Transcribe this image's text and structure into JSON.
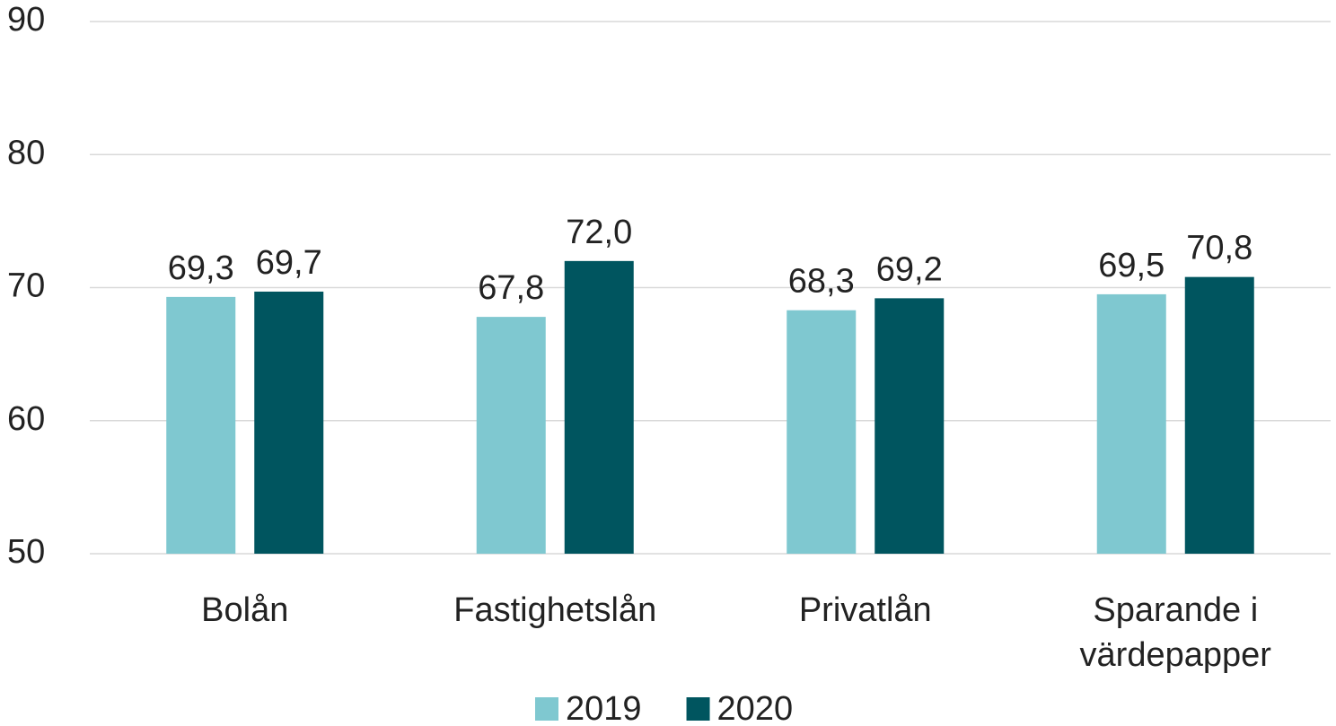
{
  "chart_data": {
    "type": "bar",
    "categories": [
      "Bolån",
      "Fastighetslån",
      "Privatlån",
      "Sparande i värdepapper"
    ],
    "series": [
      {
        "name": "2019",
        "color": "#7fc8d0",
        "values": [
          69.3,
          67.8,
          68.3,
          69.5
        ],
        "value_labels": [
          "69,3",
          "67,8",
          "68,3",
          "69,5"
        ]
      },
      {
        "name": "2020",
        "color": "#00555f",
        "values": [
          69.7,
          72.0,
          69.2,
          70.8
        ],
        "value_labels": [
          "69,7",
          "72,0",
          "69,2",
          "70,8"
        ]
      }
    ],
    "ylim": [
      50,
      90
    ],
    "yticks": [
      50,
      60,
      70,
      80,
      90
    ],
    "grid": true,
    "legend": "bottom"
  }
}
